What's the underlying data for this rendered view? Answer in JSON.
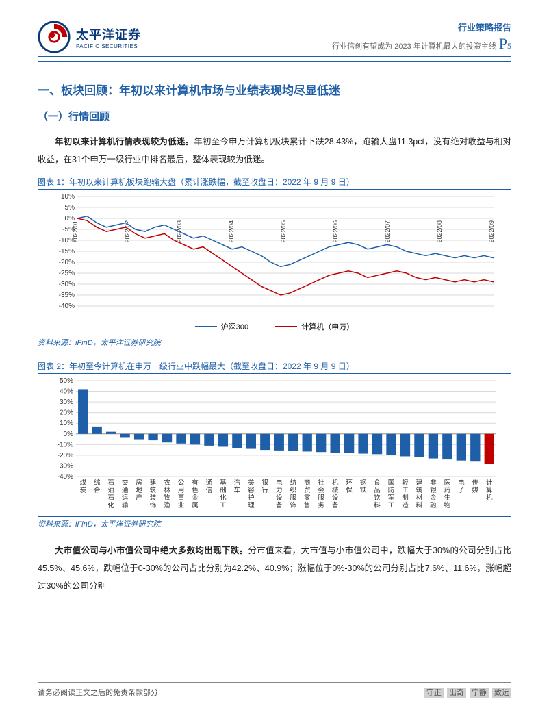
{
  "header": {
    "logo_cn": "太平洋证券",
    "logo_en": "PACIFIC SECURITIES",
    "report_type": "行业策略报告",
    "subtitle": "行业信创有望成为 2023 年计算机最大的投资主线",
    "page_prefix": "P",
    "page_num": "5"
  },
  "section": {
    "h1": "一、板块回顾：年初以来计算机市场与业绩表现均尽显低迷",
    "h2": "（一）行情回顾",
    "p1_bold": "年初以来计算机行情表现较为低迷。",
    "p1_rest": "年初至今申万计算机板块累计下跌28.43%，跑输大盘11.3pct，没有绝对收益与相对收益，在31个申万一级行业中排名最后，整体表现较为低迷。",
    "p2_bold": "大市值公司与小市值公司中绝大多数均出现下跌。",
    "p2_rest": "分市值来看，大市值与小市值公司中，跌幅大于30%的公司分别占比45.5%、45.6%，跌幅位于0-30%的公司占比分别为42.2%、40.9%；涨幅位于0%-30%的公司分别占比7.6%、11.6%，涨幅超过30%的公司分别"
  },
  "chart1": {
    "caption": "图表 1：年初以来计算机板块跑输大盘（累计涨跌幅，截至收盘日：2022 年 9 月 9 日）",
    "source": "资料来源：iFinD，太平洋证券研究院",
    "ylim": [
      -40,
      10
    ],
    "ytick_step": 5,
    "ylabels": [
      "10%",
      "5%",
      "0%",
      "-5%",
      "-10%",
      "-15%",
      "-20%",
      "-25%",
      "-30%",
      "-35%",
      "-40%"
    ],
    "xlabels": [
      "2022/01",
      "2022/02",
      "2022/03",
      "2022/04",
      "2022/05",
      "2022/06",
      "2022/07",
      "2022/08",
      "2022/09"
    ],
    "grid_color": "#d9d9d9",
    "background_color": "#ffffff",
    "series": [
      {
        "name": "沪深300",
        "color": "#1f5fa8",
        "data": [
          0,
          1,
          -2,
          -4,
          -3,
          -2,
          -5,
          -6,
          -4,
          -3,
          -5,
          -7,
          -9,
          -8,
          -10,
          -12,
          -14,
          -13,
          -15,
          -17,
          -20,
          -22,
          -21,
          -19,
          -17,
          -15,
          -13,
          -12,
          -11,
          -12,
          -14,
          -13,
          -12,
          -13,
          -15,
          -16,
          -17,
          -16,
          -17,
          -18,
          -17,
          -18,
          -17,
          -18
        ]
      },
      {
        "name": "计算机（申万）",
        "color": "#c00000",
        "data": [
          0,
          -1,
          -4,
          -6,
          -5,
          -4,
          -7,
          -9,
          -8,
          -7,
          -10,
          -12,
          -14,
          -13,
          -16,
          -19,
          -22,
          -25,
          -28,
          -31,
          -33,
          -35,
          -34,
          -32,
          -30,
          -28,
          -26,
          -25,
          -24,
          -25,
          -27,
          -26,
          -25,
          -24,
          -25,
          -27,
          -28,
          -27,
          -28,
          -29,
          -28,
          -29,
          -28,
          -29
        ]
      }
    ]
  },
  "chart2": {
    "caption": "图表 2：年初至今计算机在申万一级行业中跌幅最大（截至收盘日：2022 年 9 月 9 日）",
    "source": "资料来源：iFinD，太平洋证券研究院",
    "ylim": [
      -40,
      50
    ],
    "ytick_step": 10,
    "ylabels": [
      "50%",
      "40%",
      "30%",
      "20%",
      "10%",
      "0%",
      "-10%",
      "-20%",
      "-30%",
      "-40%"
    ],
    "grid_color": "#d9d9d9",
    "background_color": "#ffffff",
    "bar_color": "#1f5fa8",
    "highlight_color": "#c00000",
    "categories": [
      "煤炭",
      "综合",
      "石油石化",
      "交通运输",
      "房地产",
      "建筑装饰",
      "农林牧渔",
      "公用事业",
      "有色金属",
      "通信",
      "基础化工",
      "汽车",
      "美容护理",
      "银行",
      "电力设备",
      "纺织服饰",
      "商贸零售",
      "社会服务",
      "机械设备",
      "环保",
      "钢铁",
      "食品饮料",
      "国防军工",
      "轻工制造",
      "建筑材料",
      "非银金融",
      "医药生物",
      "电子",
      "传媒",
      "计算机"
    ],
    "cat_top": [
      "煤",
      "综",
      "石",
      "交",
      "房",
      "建",
      "农",
      "公",
      "有",
      "通",
      "基",
      "汽",
      "美",
      "银",
      "电",
      "纺",
      "商",
      "社",
      "机",
      "环",
      "钢",
      "食",
      "国",
      "轻",
      "建",
      "非",
      "医",
      "电",
      "传",
      "计"
    ],
    "cat_mid": [
      "炭",
      "合",
      "油",
      "通",
      "地",
      "筑",
      "林",
      "用",
      "色",
      "信",
      "础",
      "车",
      "容",
      "行",
      "力",
      "织",
      "贸",
      "会",
      "械",
      "保",
      "铁",
      "品",
      "防",
      "工",
      "筑",
      "银",
      "药",
      "子",
      "媒",
      "算"
    ],
    "cat_bot1": [
      "",
      "",
      "石",
      "运",
      "产",
      "装",
      "牧",
      "事",
      "金",
      "",
      "化",
      "",
      "护",
      "",
      "设",
      "服",
      "零",
      "服",
      "设",
      "",
      "",
      "饮",
      "军",
      "制",
      "材",
      "金",
      "生",
      "",
      "",
      "机"
    ],
    "cat_bot2": [
      "",
      "",
      "化",
      "输",
      "",
      "饰",
      "渔",
      "业",
      "属",
      "",
      "工",
      "",
      "理",
      "",
      "备",
      "饰",
      "售",
      "务",
      "备",
      "",
      "",
      "料",
      "工",
      "造",
      "料",
      "融",
      "物",
      "",
      "",
      ""
    ],
    "values": [
      42,
      7,
      2,
      -3,
      -5,
      -6,
      -8,
      -9,
      -10,
      -11,
      -12,
      -13,
      -14,
      -15,
      -15.5,
      -16,
      -16.5,
      -17,
      -17.5,
      -18,
      -18.5,
      -19,
      -20,
      -21,
      -22,
      -23,
      -24,
      -25,
      -26,
      -28
    ],
    "highlight_index": 29
  },
  "footer": {
    "left": "请务必阅读正文之后的免责条款部分",
    "right": [
      "守正",
      "出奇",
      "宁静",
      "致远"
    ]
  }
}
